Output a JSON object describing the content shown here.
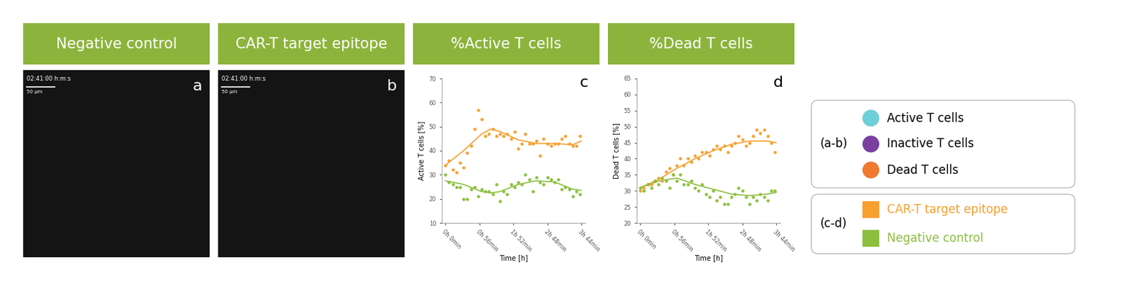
{
  "images": [
    {
      "header": "Negative control",
      "panel_label": "a",
      "timestamp": "02:41:00 h:m:s",
      "scale_bar": "50 µm"
    },
    {
      "header": "CAR-T target epitope",
      "panel_label": "b",
      "timestamp": "02:41:00 h:m:s",
      "scale_bar": "50 µm"
    }
  ],
  "header_color": "#8cb43c",
  "chart_data": [
    {
      "type": "scatter",
      "title": "%Active T cells",
      "annotations": [
        "c"
      ],
      "x_label": "Time [h]",
      "y_label": "Active T cells [%]",
      "xlim": [
        -0.1,
        3.85
      ],
      "xticks": [
        {
          "value": 0,
          "label": "0h 0min"
        },
        {
          "value": 0.9333,
          "label": "0h 56min"
        },
        {
          "value": 1.8667,
          "label": "1h 52min"
        },
        {
          "value": 2.8,
          "label": "2h 48min"
        },
        {
          "value": 3.7333,
          "label": "3h 44min"
        }
      ],
      "ylim": [
        10,
        70
      ],
      "yticks": [
        10,
        20,
        30,
        40,
        50,
        60,
        70
      ],
      "x": [
        0,
        0.1,
        0.2,
        0.3,
        0.4,
        0.5,
        0.6,
        0.7,
        0.8,
        0.9,
        1.0,
        1.1,
        1.2,
        1.3,
        1.4,
        1.5,
        1.6,
        1.7,
        1.8,
        1.9,
        2.0,
        2.1,
        2.2,
        2.3,
        2.4,
        2.5,
        2.6,
        2.7,
        2.8,
        2.9,
        3.0,
        3.1,
        3.2,
        3.3,
        3.4,
        3.5,
        3.6,
        3.7
      ],
      "trend_x": [
        0,
        0.5,
        1.0,
        1.25,
        1.5,
        2.0,
        2.5,
        3.0,
        3.5,
        3.73
      ],
      "series": [
        {
          "name": "CAR-T target epitope",
          "color": "#f7a030",
          "marker": "o",
          "values": [
            34,
            36,
            32,
            31,
            35,
            33,
            39,
            42,
            49,
            57,
            53,
            46,
            47,
            49,
            46,
            47,
            46,
            47,
            45,
            48,
            41,
            43,
            47,
            43,
            43,
            44,
            38,
            45,
            43,
            42,
            43,
            43,
            45,
            46,
            43,
            42,
            42,
            46
          ],
          "trend": [
            34,
            40,
            47,
            49,
            48,
            44.5,
            43,
            43,
            42.5,
            44
          ]
        },
        {
          "name": "Negative control",
          "color": "#8dbf3f",
          "marker": "o",
          "values": [
            30,
            27,
            26,
            25,
            25,
            20,
            20,
            24,
            25,
            21,
            24,
            23,
            23,
            22,
            26,
            19,
            23,
            22,
            26,
            25,
            27,
            26,
            30,
            28,
            23,
            29,
            27,
            26,
            29,
            28,
            27,
            28,
            24,
            25,
            24,
            21,
            23,
            22
          ],
          "trend": [
            27.5,
            26,
            23,
            22.5,
            23,
            26,
            27.5,
            27,
            24,
            23.5
          ]
        }
      ]
    },
    {
      "type": "scatter",
      "title": "%Dead T cells",
      "annotations": [
        "d"
      ],
      "x_label": "Time [h]",
      "y_label": "Dead T cells [%]",
      "xlim": [
        -0.1,
        3.85
      ],
      "xticks": [
        {
          "value": 0,
          "label": "0h 0min"
        },
        {
          "value": 0.9333,
          "label": "0h 56min"
        },
        {
          "value": 1.8667,
          "label": "1h 52min"
        },
        {
          "value": 2.8,
          "label": "2h 48min"
        },
        {
          "value": 3.7333,
          "label": "3h 44min"
        }
      ],
      "ylim": [
        20,
        65
      ],
      "yticks": [
        20,
        25,
        30,
        35,
        40,
        45,
        50,
        55,
        60,
        65
      ],
      "x": [
        0,
        0.1,
        0.2,
        0.3,
        0.4,
        0.5,
        0.6,
        0.7,
        0.8,
        0.9,
        1.0,
        1.1,
        1.2,
        1.3,
        1.4,
        1.5,
        1.6,
        1.7,
        1.8,
        1.9,
        2.0,
        2.1,
        2.2,
        2.3,
        2.4,
        2.5,
        2.6,
        2.7,
        2.8,
        2.9,
        3.0,
        3.1,
        3.2,
        3.3,
        3.4,
        3.5,
        3.6,
        3.7
      ],
      "trend_x": [
        0,
        0.5,
        1.0,
        1.25,
        1.5,
        2.0,
        2.5,
        3.0,
        3.5,
        3.73
      ],
      "series": [
        {
          "name": "CAR-T target epitope",
          "color": "#f7a030",
          "marker": "o",
          "values": [
            30,
            31,
            32,
            32,
            33,
            34,
            33,
            36,
            37,
            35,
            38,
            40,
            38,
            40,
            39,
            41,
            40,
            42,
            42,
            41,
            43,
            44,
            43,
            44,
            42,
            44,
            45,
            47,
            46,
            44,
            45,
            47,
            49,
            48,
            49,
            47,
            45,
            42
          ],
          "trend": [
            31,
            33.5,
            37,
            38.5,
            40,
            42.5,
            44.5,
            45.5,
            45.5,
            45
          ]
        },
        {
          "name": "Negative control",
          "color": "#8dbf3f",
          "marker": "o",
          "values": [
            31,
            30,
            32,
            31,
            33,
            32,
            34,
            33,
            31,
            35,
            33,
            35,
            32,
            32,
            33,
            31,
            30,
            32,
            29,
            28,
            30,
            27,
            28,
            26,
            26,
            28,
            29,
            31,
            30,
            28,
            26,
            28,
            27,
            29,
            28,
            27,
            30,
            30
          ],
          "trend": [
            31,
            33,
            34,
            33,
            32,
            30.5,
            29,
            28.5,
            29,
            29.5
          ]
        }
      ]
    }
  ],
  "legend_box": [
    {
      "label": "(a-b)",
      "marker": "o",
      "items": [
        {
          "name": "Active T cells",
          "color": "#6fcfd6"
        },
        {
          "name": "Inactive T cells",
          "color": "#7b3fa0"
        },
        {
          "name": "Dead T cells",
          "color": "#f07a30"
        }
      ]
    },
    {
      "label": "(c-d)",
      "marker": "s",
      "items": [
        {
          "name": "CAR-T target epitope",
          "color": "#f7a030"
        },
        {
          "name": "Negative control",
          "color": "#8dbf3f"
        }
      ]
    }
  ]
}
